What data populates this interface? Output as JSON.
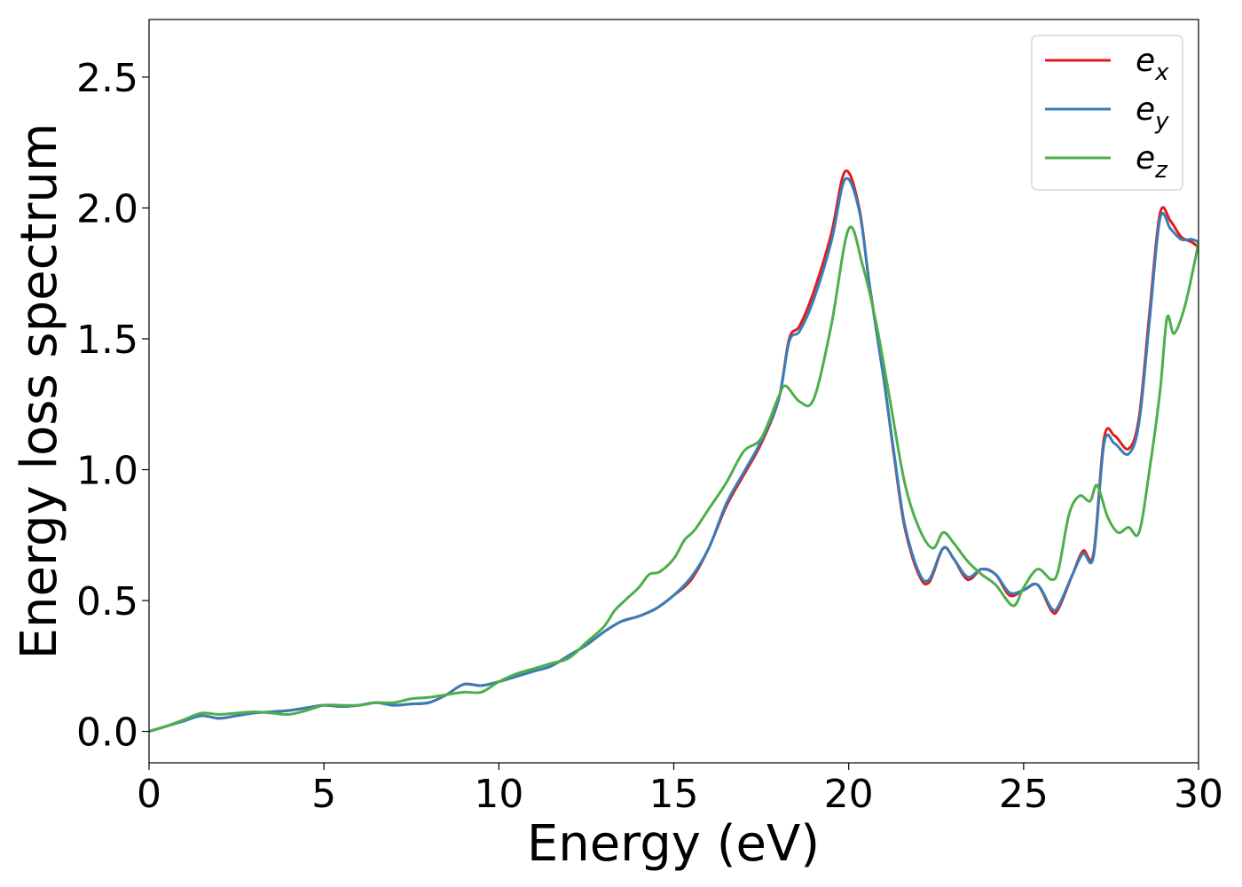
{
  "chart_data": {
    "type": "line",
    "title": "",
    "xlabel": "Energy (eV)",
    "ylabel": "Energy loss spectrum",
    "xlim": [
      0,
      30
    ],
    "ylim": [
      -0.12,
      2.72
    ],
    "xticks": [
      0,
      5,
      10,
      15,
      20,
      25,
      30
    ],
    "xtick_labels": [
      "0",
      "5",
      "10",
      "15",
      "20",
      "25",
      "30"
    ],
    "yticks": [
      0.0,
      0.5,
      1.0,
      1.5,
      2.0,
      2.5
    ],
    "ytick_labels": [
      "0.0",
      "0.5",
      "1.0",
      "1.5",
      "2.0",
      "2.5"
    ],
    "grid": false,
    "legend_position": "top-right",
    "series": [
      {
        "name": "e_x",
        "legend_base": "e",
        "legend_sub": "x",
        "color": "#e41a1c",
        "x": [
          0,
          0.5,
          1,
          1.5,
          2,
          2.5,
          3,
          3.5,
          4,
          4.5,
          5,
          5.5,
          6,
          6.5,
          7,
          7.5,
          8,
          8.5,
          9,
          9.5,
          10,
          10.5,
          11,
          11.5,
          12,
          12.5,
          13,
          13.5,
          14,
          14.5,
          15,
          15.5,
          16,
          16.5,
          17,
          17.5,
          18,
          18.3,
          18.6,
          19,
          19.5,
          19.9,
          20.3,
          20.6,
          21,
          21.3,
          21.6,
          22,
          22.3,
          22.7,
          23,
          23.4,
          23.8,
          24.2,
          24.6,
          25,
          25.4,
          25.8,
          26,
          26.4,
          26.7,
          27,
          27.3,
          27.6,
          28,
          28.3,
          28.6,
          28.9,
          29.2,
          29.5,
          29.8,
          30
        ],
        "y": [
          0.0,
          0.02,
          0.04,
          0.06,
          0.05,
          0.06,
          0.07,
          0.075,
          0.08,
          0.09,
          0.1,
          0.095,
          0.1,
          0.11,
          0.1,
          0.105,
          0.11,
          0.14,
          0.18,
          0.175,
          0.19,
          0.21,
          0.23,
          0.25,
          0.29,
          0.33,
          0.38,
          0.42,
          0.44,
          0.47,
          0.52,
          0.58,
          0.7,
          0.86,
          0.98,
          1.1,
          1.27,
          1.5,
          1.55,
          1.68,
          1.9,
          2.14,
          2.0,
          1.7,
          1.35,
          1.05,
          0.78,
          0.6,
          0.57,
          0.7,
          0.66,
          0.58,
          0.62,
          0.6,
          0.52,
          0.54,
          0.56,
          0.46,
          0.47,
          0.6,
          0.69,
          0.68,
          1.12,
          1.13,
          1.08,
          1.2,
          1.6,
          1.98,
          1.95,
          1.89,
          1.87,
          1.85
        ]
      },
      {
        "name": "e_y",
        "legend_base": "e",
        "legend_sub": "y",
        "color": "#377eb8",
        "x": [
          0,
          0.5,
          1,
          1.5,
          2,
          2.5,
          3,
          3.5,
          4,
          4.5,
          5,
          5.5,
          6,
          6.5,
          7,
          7.5,
          8,
          8.5,
          9,
          9.5,
          10,
          10.5,
          11,
          11.5,
          12,
          12.5,
          13,
          13.5,
          14,
          14.5,
          15,
          15.5,
          16,
          16.5,
          17,
          17.5,
          18,
          18.3,
          18.6,
          19,
          19.5,
          19.9,
          20.3,
          20.6,
          21,
          21.3,
          21.6,
          22,
          22.3,
          22.7,
          23,
          23.4,
          23.8,
          24.2,
          24.6,
          25,
          25.4,
          25.8,
          26,
          26.4,
          26.7,
          27,
          27.3,
          27.6,
          28,
          28.3,
          28.6,
          28.9,
          29.2,
          29.5,
          29.8,
          30
        ],
        "y": [
          0.0,
          0.02,
          0.04,
          0.06,
          0.05,
          0.06,
          0.07,
          0.075,
          0.08,
          0.09,
          0.1,
          0.095,
          0.1,
          0.11,
          0.1,
          0.105,
          0.11,
          0.14,
          0.18,
          0.175,
          0.19,
          0.21,
          0.23,
          0.25,
          0.29,
          0.33,
          0.38,
          0.42,
          0.44,
          0.47,
          0.52,
          0.59,
          0.7,
          0.87,
          0.99,
          1.11,
          1.27,
          1.49,
          1.53,
          1.65,
          1.87,
          2.11,
          1.99,
          1.7,
          1.35,
          1.06,
          0.79,
          0.61,
          0.58,
          0.7,
          0.66,
          0.59,
          0.62,
          0.6,
          0.53,
          0.54,
          0.56,
          0.47,
          0.48,
          0.6,
          0.68,
          0.67,
          1.1,
          1.1,
          1.06,
          1.18,
          1.57,
          1.96,
          1.92,
          1.88,
          1.88,
          1.87
        ]
      },
      {
        "name": "e_z",
        "legend_base": "e",
        "legend_sub": "z",
        "color": "#4daf4a",
        "x": [
          0,
          0.5,
          1,
          1.5,
          2,
          2.5,
          3,
          3.5,
          4,
          4.5,
          5,
          5.5,
          6,
          6.5,
          7,
          7.5,
          8,
          8.5,
          9,
          9.5,
          10,
          10.5,
          11,
          11.5,
          12,
          12.5,
          13,
          13.3,
          13.6,
          14,
          14.3,
          14.6,
          15,
          15.3,
          15.6,
          16,
          16.5,
          17,
          17.5,
          18,
          18.2,
          18.6,
          19,
          19.5,
          20,
          20.4,
          20.8,
          21.2,
          21.6,
          22,
          22.4,
          22.7,
          23,
          23.4,
          23.8,
          24.2,
          24.7,
          25,
          25.4,
          25.8,
          26,
          26.3,
          26.6,
          26.9,
          27.1,
          27.4,
          27.7,
          28,
          28.3,
          28.6,
          28.9,
          29.1,
          29.3,
          29.6,
          29.9,
          30
        ],
        "y": [
          0.0,
          0.02,
          0.045,
          0.07,
          0.065,
          0.07,
          0.075,
          0.07,
          0.065,
          0.08,
          0.1,
          0.1,
          0.1,
          0.11,
          0.11,
          0.125,
          0.13,
          0.14,
          0.15,
          0.15,
          0.19,
          0.22,
          0.24,
          0.26,
          0.28,
          0.34,
          0.4,
          0.46,
          0.5,
          0.55,
          0.6,
          0.61,
          0.66,
          0.73,
          0.77,
          0.85,
          0.95,
          1.07,
          1.12,
          1.28,
          1.32,
          1.26,
          1.27,
          1.55,
          1.92,
          1.78,
          1.55,
          1.25,
          0.95,
          0.78,
          0.7,
          0.76,
          0.72,
          0.65,
          0.6,
          0.56,
          0.48,
          0.55,
          0.62,
          0.58,
          0.62,
          0.83,
          0.9,
          0.88,
          0.94,
          0.82,
          0.76,
          0.78,
          0.76,
          1.0,
          1.3,
          1.58,
          1.52,
          1.62,
          1.8,
          1.87
        ]
      }
    ]
  }
}
